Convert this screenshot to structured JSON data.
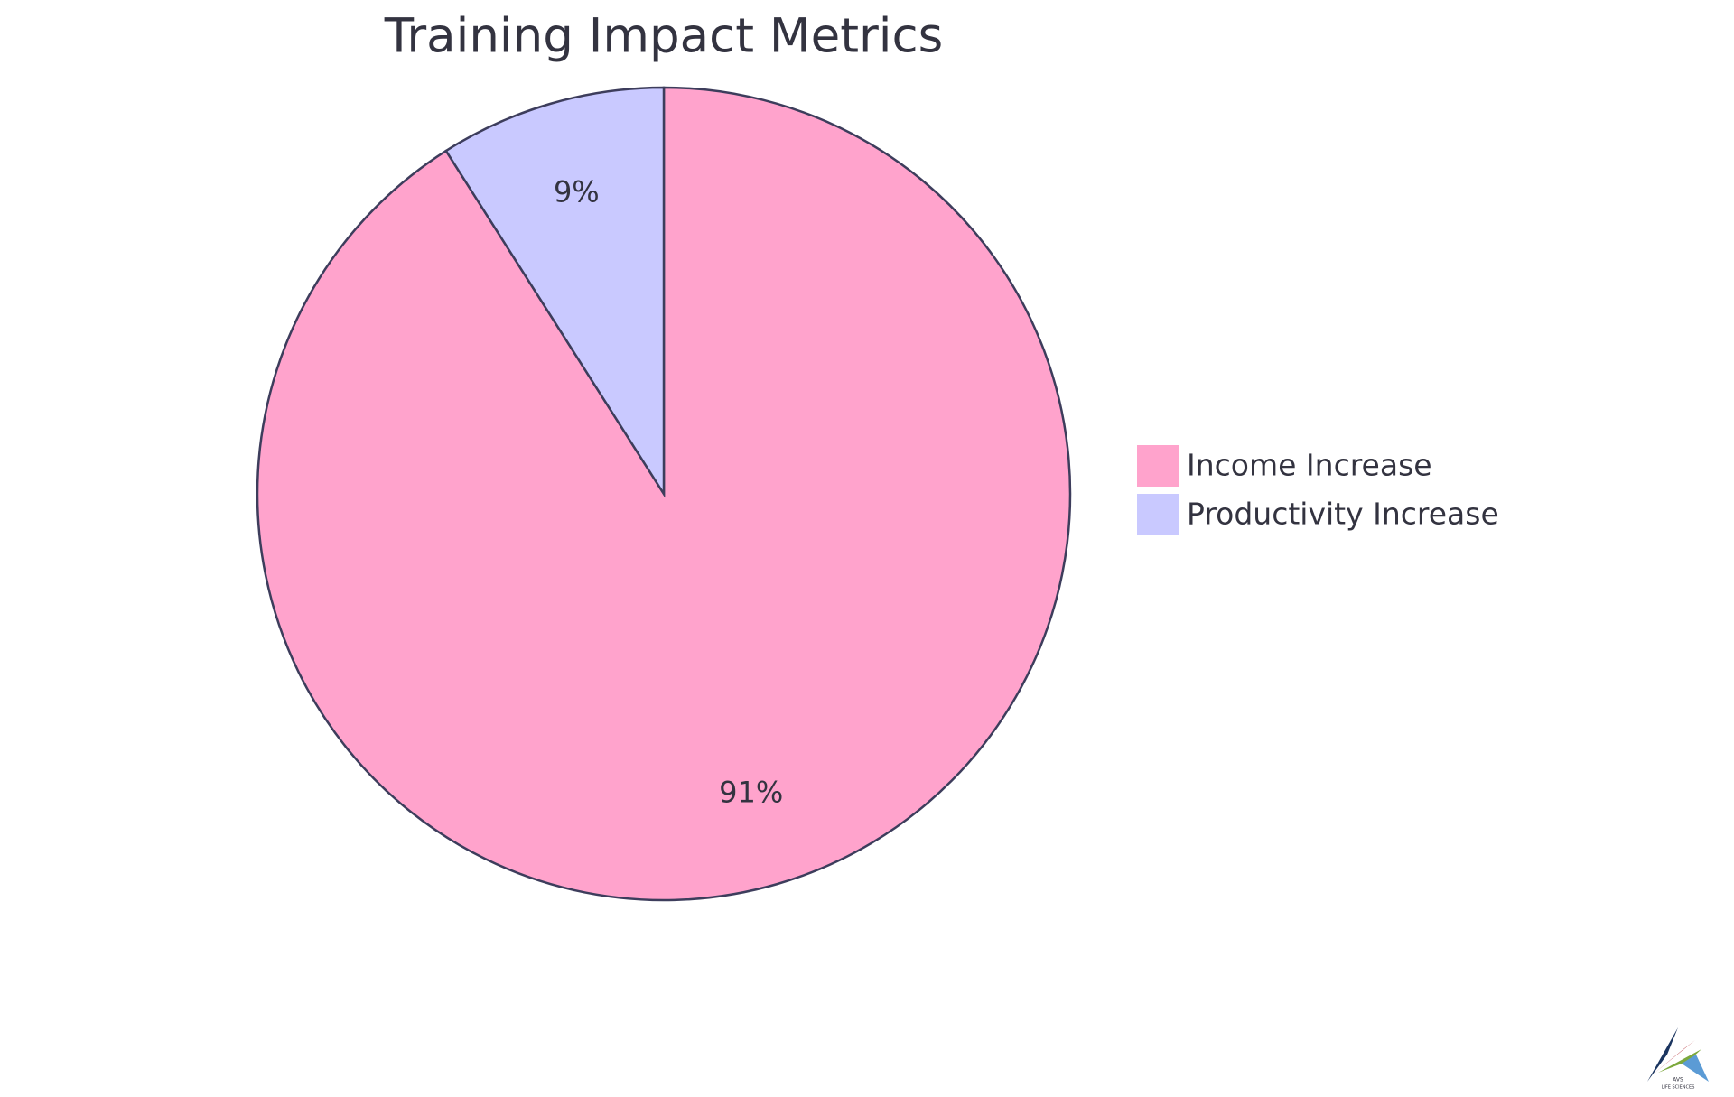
{
  "chart_data": {
    "type": "pie",
    "title": "Training Impact Metrics",
    "categories": [
      "Income Increase",
      "Productivity Increase"
    ],
    "values": [
      91,
      9
    ],
    "value_labels": [
      "91%",
      "9%"
    ],
    "colors": [
      "#ffa3cc",
      "#c9c9ff"
    ],
    "legend": "right"
  },
  "logo": {
    "name": "AVS",
    "tagline": "LIFE SCIENCES"
  }
}
